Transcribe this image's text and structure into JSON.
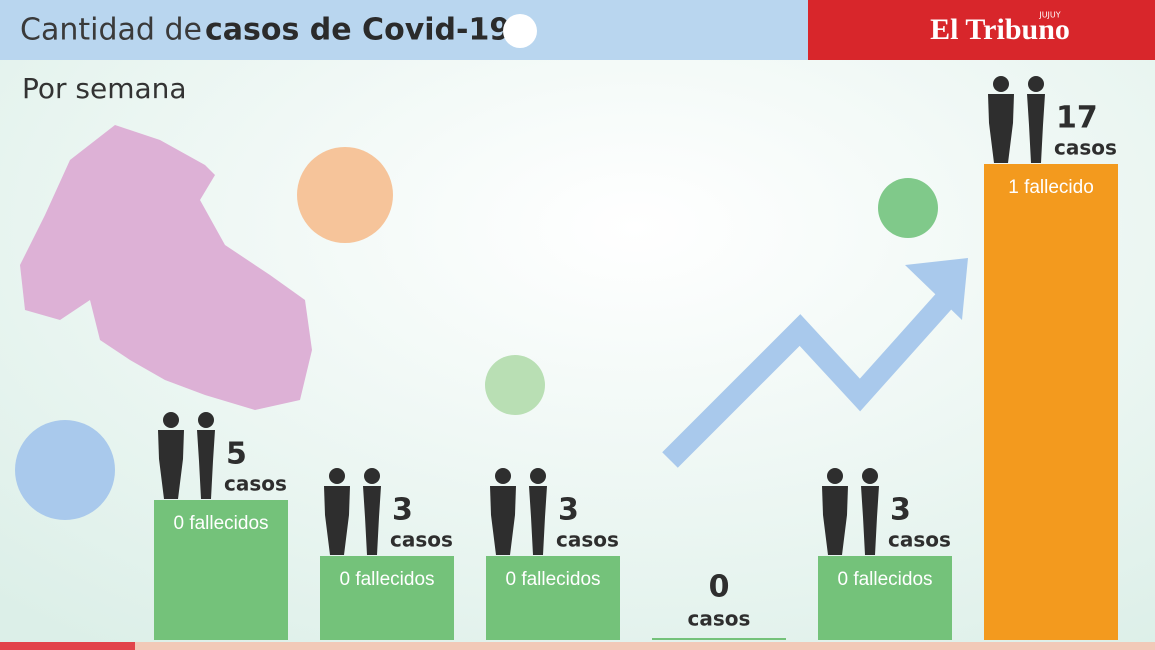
{
  "chart_data": {
    "type": "bar",
    "title": "Cantidad de",
    "title_bold": "casos de Covid-19",
    "subtitle": "Por semana",
    "brand": "El Tribuno",
    "brand_region": "JUJUY",
    "unit_label": "casos",
    "values": [
      5,
      3,
      3,
      0,
      3,
      17
    ],
    "bar_labels": [
      "0 fallecidos",
      "0 fallecidos",
      "0 fallecidos",
      null,
      "0 fallecidos",
      "1 fallecido"
    ],
    "colors": [
      "#74c27a",
      "#74c27a",
      "#74c27a",
      "#74c27a",
      "#74c27a",
      "#f39a1e"
    ]
  }
}
